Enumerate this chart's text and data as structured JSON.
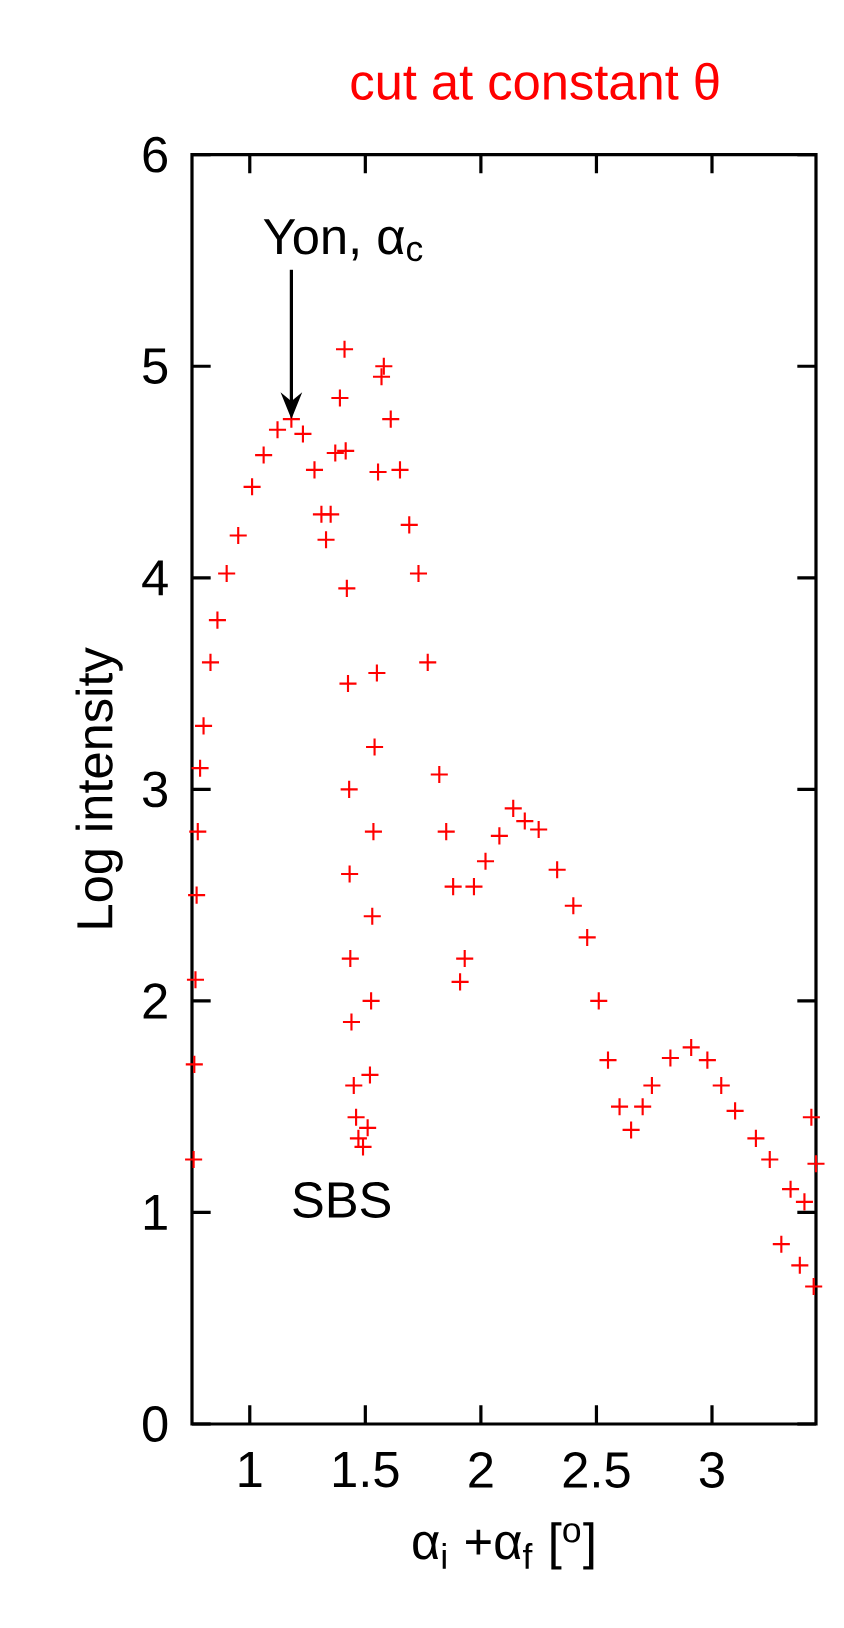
{
  "chart_data": {
    "type": "scatter",
    "title": "cut at constant θ",
    "xlabel": "α$_{i}$ +α$_{f}$   [$^{o}$]",
    "ylabel": "Log intensity",
    "xlim": [
      0.75,
      3.45
    ],
    "ylim": [
      0,
      6
    ],
    "xticks": [
      1,
      1.5,
      2,
      2.5,
      3
    ],
    "yticks": [
      0,
      1,
      2,
      3,
      4,
      5,
      6
    ],
    "marker": "cross",
    "grid": false,
    "annotations": [
      {
        "text": "Yon, α$_{c}$",
        "x": 1.18,
        "y": 4.75
      },
      {
        "text": "SBS",
        "x": 1.49,
        "y": 1.31
      }
    ],
    "series": [
      {
        "color": "#ff0000",
        "x": [
          0.757,
          0.76,
          0.765,
          0.77,
          0.775,
          0.785,
          0.8,
          0.83,
          0.86,
          0.9,
          0.95,
          1.01,
          1.06,
          1.12,
          1.18,
          1.23,
          1.28,
          1.31,
          1.33,
          1.35,
          1.37,
          1.39,
          1.41,
          1.415,
          1.42,
          1.425,
          1.43,
          1.432,
          1.435,
          1.44,
          1.45,
          1.46,
          1.47,
          1.49,
          1.51,
          1.52,
          1.525,
          1.53,
          1.535,
          1.54,
          1.55,
          1.555,
          1.57,
          1.58,
          1.61,
          1.65,
          1.69,
          1.73,
          1.77,
          1.82,
          1.85,
          1.88,
          1.91,
          1.93,
          1.97,
          2.02,
          2.08,
          2.14,
          2.19,
          2.25,
          2.33,
          2.4,
          2.46,
          2.51,
          2.55,
          2.6,
          2.65,
          2.7,
          2.74,
          2.82,
          2.91,
          2.98,
          3.04,
          3.1,
          3.19,
          3.25,
          3.3,
          3.34,
          3.38,
          3.4,
          3.43,
          3.45,
          3.44
        ],
        "values": [
          1.25,
          1.7,
          2.1,
          2.5,
          2.8,
          3.1,
          3.3,
          3.6,
          3.8,
          4.02,
          4.2,
          4.43,
          4.58,
          4.7,
          4.75,
          4.68,
          4.51,
          4.3,
          4.18,
          4.3,
          4.59,
          4.85,
          5.08,
          4.6,
          3.95,
          3.5,
          3.0,
          2.6,
          2.2,
          1.9,
          1.6,
          1.45,
          1.35,
          1.31,
          1.4,
          1.65,
          2.0,
          2.4,
          2.8,
          3.2,
          3.55,
          4.5,
          4.95,
          5.0,
          4.75,
          4.51,
          4.25,
          4.02,
          3.6,
          3.07,
          2.8,
          2.54,
          2.09,
          2.2,
          2.54,
          2.66,
          2.78,
          2.91,
          2.85,
          2.81,
          2.62,
          2.45,
          2.3,
          2.0,
          1.72,
          1.5,
          1.39,
          1.5,
          1.6,
          1.73,
          1.78,
          1.72,
          1.6,
          1.48,
          1.35,
          1.25,
          0.85,
          1.11,
          0.75,
          1.05,
          1.45,
          1.23,
          0.65
        ]
      }
    ]
  }
}
